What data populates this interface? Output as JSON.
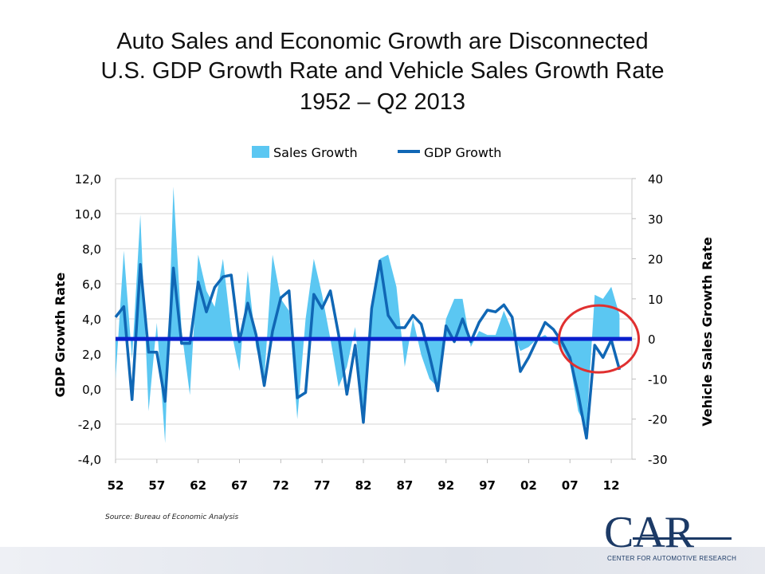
{
  "slide": {
    "title_line1": "Auto Sales and Economic Growth are Disconnected",
    "title_line2": "U.S. GDP Growth Rate and Vehicle Sales Growth Rate",
    "title_line3": "1952 – Q2 2013",
    "source": "Source: Bureau of Economic Analysis",
    "logo_text": "CAR",
    "logo_subtitle": "CENTER FOR AUTOMOTIVE RESEARCH"
  },
  "chart_data": {
    "type": "line",
    "legend": {
      "position": "top",
      "entries": [
        "Sales Growth",
        "GDP Growth"
      ]
    },
    "ylabel": "GDP Growth Rate",
    "y2label": "Vehicle Sales Growth Rate",
    "ylim": [
      -4,
      12
    ],
    "y2lim": [
      -30,
      40
    ],
    "yticks": [
      "12,0",
      "10,0",
      "8,0",
      "6,0",
      "4,0",
      "2,0",
      "0,0",
      "-2,0",
      "-4,0"
    ],
    "y2ticks": [
      "40",
      "30",
      "20",
      "10",
      "0",
      "-10",
      "-20",
      "-30"
    ],
    "xlim": [
      52,
      2014.5
    ],
    "xticks": [
      "52",
      "57",
      "62",
      "67",
      "72",
      "77",
      "82",
      "87",
      "92",
      "97",
      "02",
      "07",
      "12"
    ],
    "reference_line": {
      "axis": "y2",
      "value": 0,
      "color": "#0a1fcc"
    },
    "highlight": {
      "type": "circle",
      "color": "#e03030",
      "x_center": 2010.5,
      "y2_center": 0
    },
    "colors": {
      "sales": "#5bc7f2",
      "gdp": "#1067b5"
    },
    "series": [
      {
        "name": "Sales Growth",
        "axis": "y2",
        "type": "area",
        "x": [
          1952,
          1953,
          1954,
          1955,
          1956,
          1957,
          1958,
          1959,
          1960,
          1961,
          1962,
          1963,
          1964,
          1965,
          1966,
          1967,
          1968,
          1969,
          1970,
          1971,
          1972,
          1973,
          1974,
          1975,
          1976,
          1977,
          1978,
          1979,
          1980,
          1981,
          1982,
          1983,
          1984,
          1985,
          1986,
          1987,
          1988,
          1989,
          1990,
          1991,
          1992,
          1993,
          1994,
          1995,
          1996,
          1997,
          1998,
          1999,
          2000,
          2001,
          2002,
          2003,
          2004,
          2005,
          2006,
          2007,
          2008,
          2009,
          2010,
          2011,
          2012,
          2013
        ],
        "values": [
          -10,
          22,
          -5,
          31,
          -18,
          4,
          -26,
          38,
          2,
          -14,
          21,
          12,
          8,
          20,
          2,
          -8,
          17,
          -2,
          -10,
          21,
          10,
          7,
          -20,
          5,
          20,
          11,
          0,
          -12,
          -7,
          3,
          -19,
          8,
          20,
          21,
          13,
          -7,
          5,
          -4,
          -10,
          -12,
          5,
          10,
          10,
          -2,
          2,
          1,
          1,
          7,
          2,
          -3,
          -2,
          0,
          1,
          -1,
          -2,
          -6,
          -18,
          -22,
          11,
          10,
          13,
          6
        ]
      },
      {
        "name": "GDP Growth",
        "axis": "y",
        "type": "line",
        "x": [
          1952,
          1953,
          1954,
          1955,
          1956,
          1957,
          1958,
          1959,
          1960,
          1961,
          1962,
          1963,
          1964,
          1965,
          1966,
          1967,
          1968,
          1969,
          1970,
          1971,
          1972,
          1973,
          1974,
          1975,
          1976,
          1977,
          1978,
          1979,
          1980,
          1981,
          1982,
          1983,
          1984,
          1985,
          1986,
          1987,
          1988,
          1989,
          1990,
          1991,
          1992,
          1993,
          1994,
          1995,
          1996,
          1997,
          1998,
          1999,
          2000,
          2001,
          2002,
          2003,
          2004,
          2005,
          2006,
          2007,
          2008,
          2009,
          2010,
          2011,
          2012,
          2013
        ],
        "values": [
          4.1,
          4.7,
          -0.6,
          7.1,
          2.1,
          2.1,
          -0.7,
          6.9,
          2.6,
          2.6,
          6.1,
          4.4,
          5.8,
          6.4,
          6.5,
          2.7,
          4.9,
          3.1,
          0.2,
          3.3,
          5.2,
          5.6,
          -0.5,
          -0.2,
          5.4,
          4.6,
          5.6,
          3.1,
          -0.3,
          2.5,
          -1.9,
          4.6,
          7.3,
          4.2,
          3.5,
          3.5,
          4.2,
          3.7,
          1.9,
          -0.1,
          3.6,
          2.7,
          4.0,
          2.7,
          3.8,
          4.5,
          4.4,
          4.8,
          4.1,
          1.0,
          1.8,
          2.8,
          3.8,
          3.4,
          2.7,
          1.8,
          -0.3,
          -2.8,
          2.5,
          1.8,
          2.8,
          1.1
        ]
      }
    ]
  }
}
